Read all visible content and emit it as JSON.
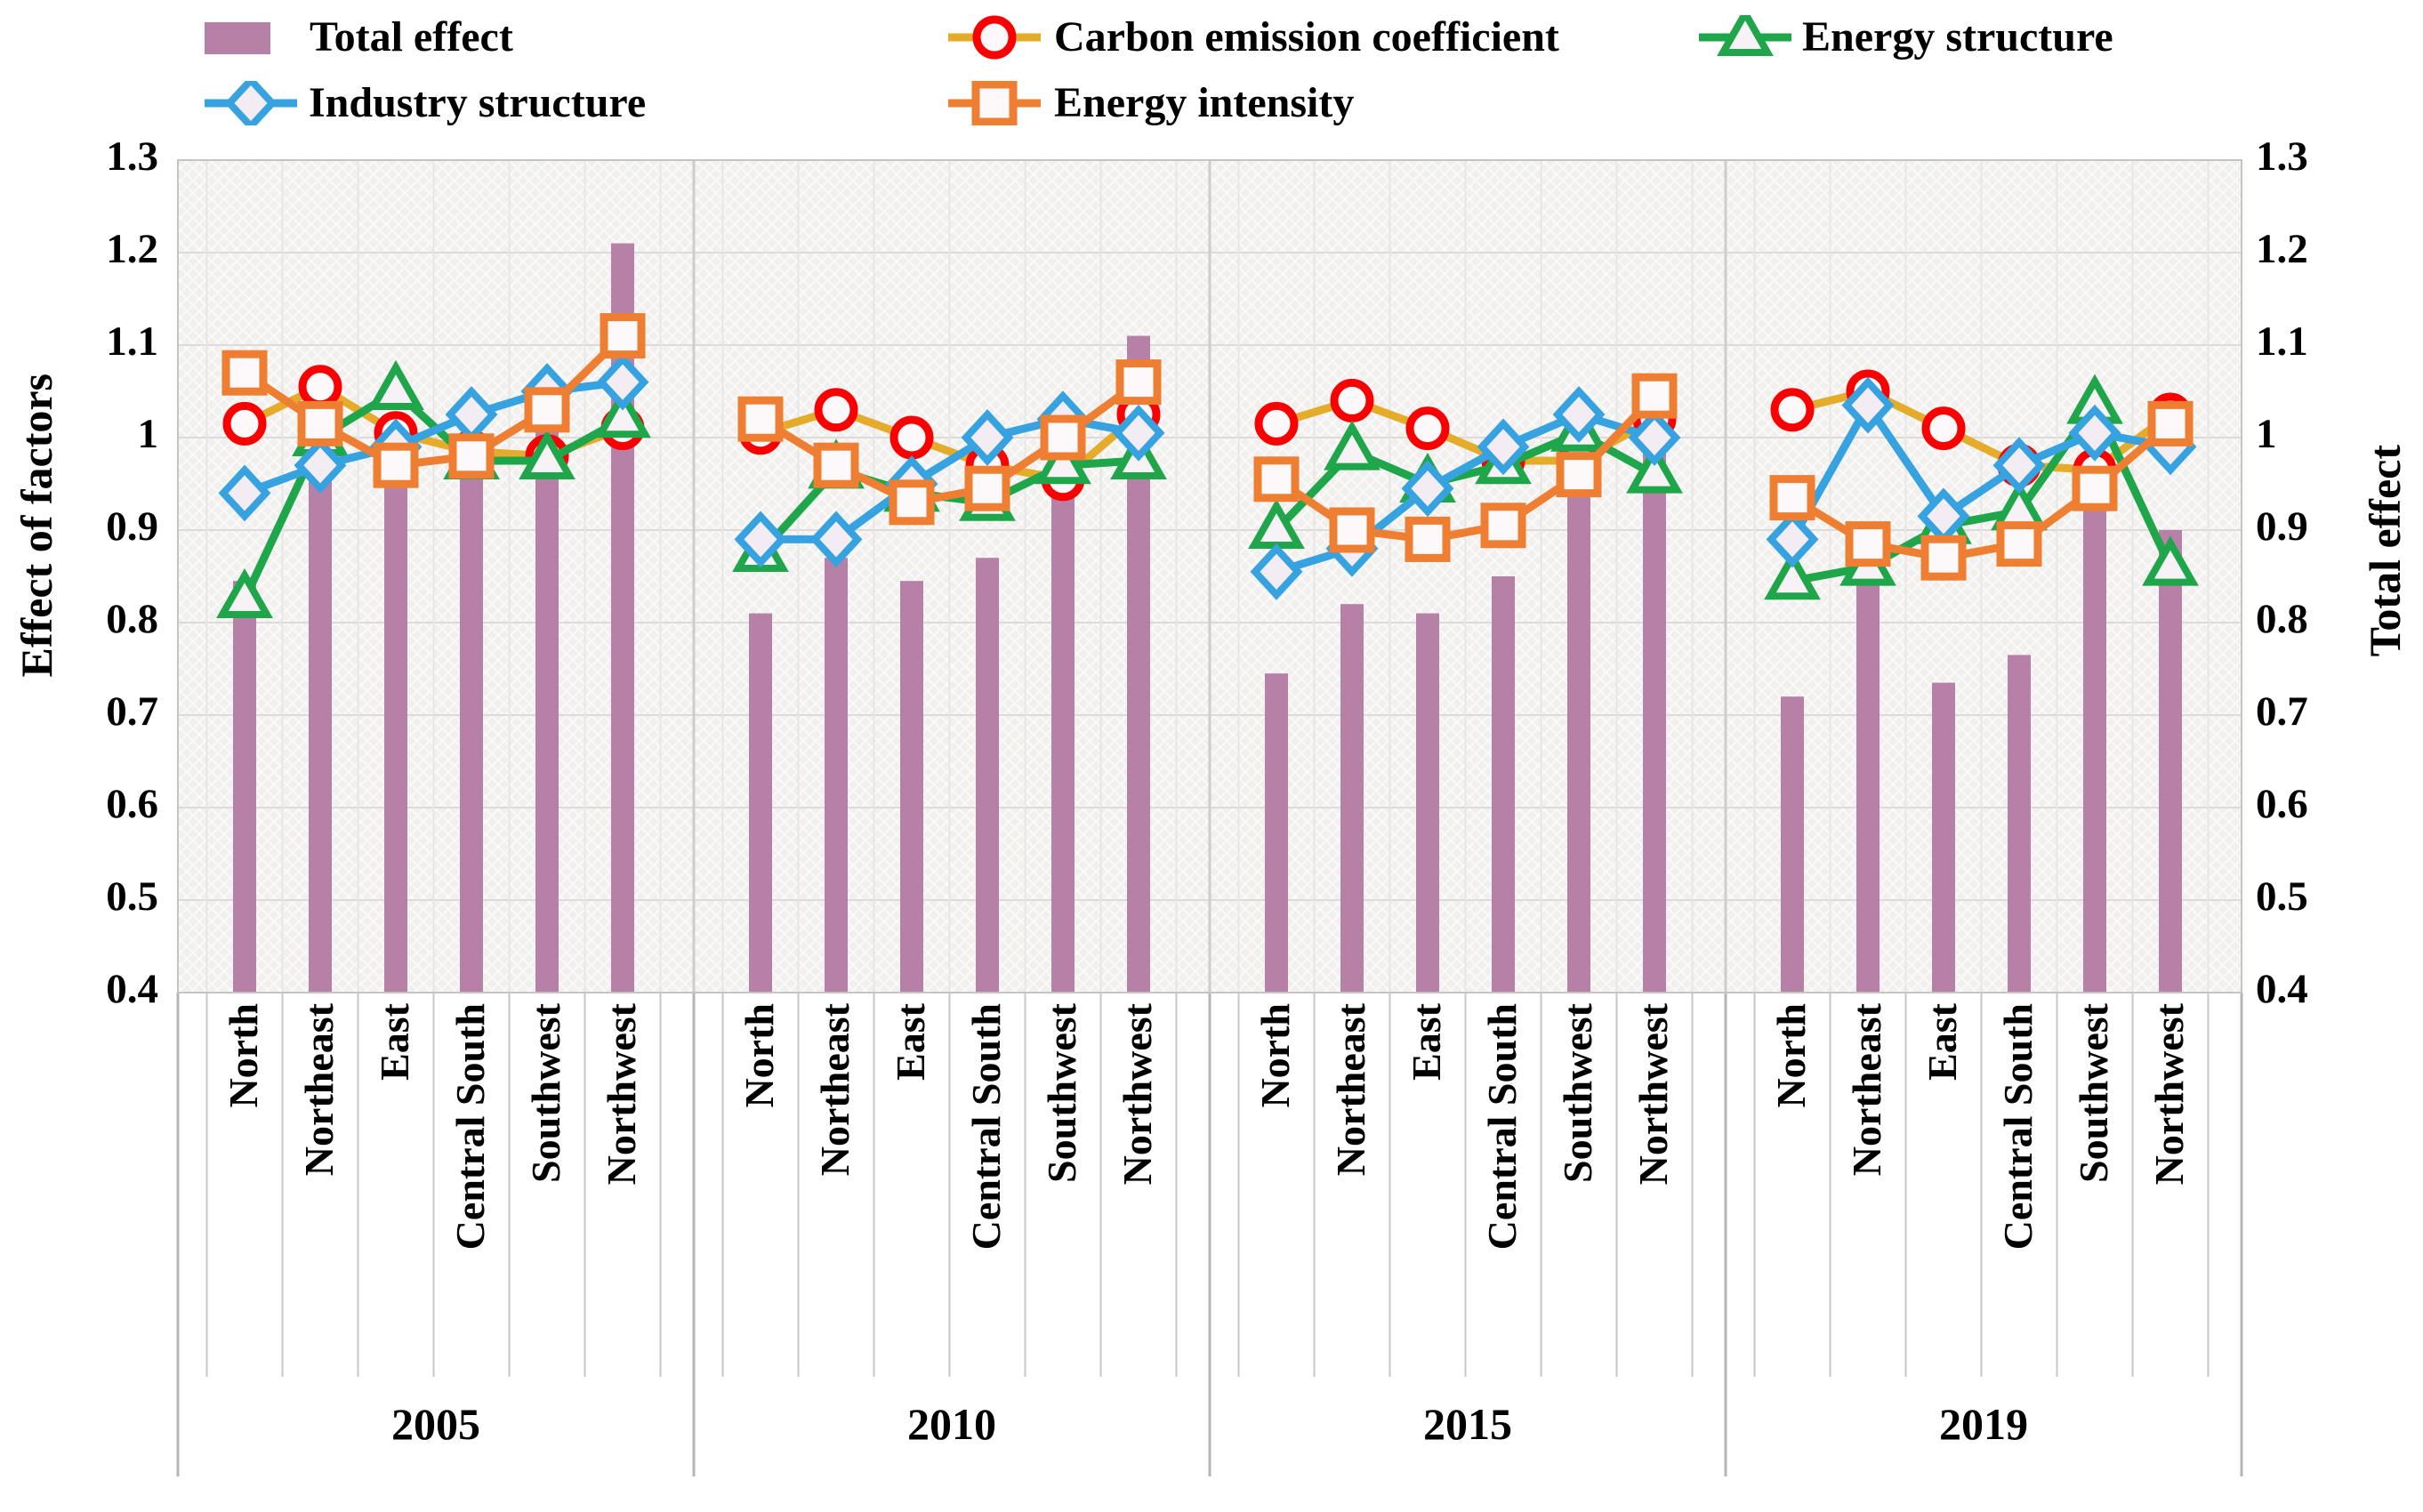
{
  "chart_data": {
    "type": "bar+line",
    "title": "",
    "regions": [
      "North",
      "Northeast",
      "East",
      "Central South",
      "Southwest",
      "Northwest"
    ],
    "years": [
      "2005",
      "2010",
      "2015",
      "2019"
    ],
    "left_axis": {
      "label": "Effect of factors",
      "tick_labels": [
        "1.3",
        "1.2",
        "1.1",
        "1",
        "0.9",
        "0.8",
        "0.7",
        "0.6",
        "0.5",
        "0.4"
      ],
      "min": 0.4,
      "max": 1.3,
      "step": 0.1
    },
    "right_axis": {
      "label": "Total effect",
      "tick_labels": [
        "1.3",
        "1.2",
        "1.1",
        "1",
        "0.9",
        "0.8",
        "0.7",
        "0.6",
        "0.5",
        "0.4"
      ],
      "min": 0.4,
      "max": 1.3,
      "step": 0.1
    },
    "grid": true,
    "legend_position": "top",
    "plot_bg": "#f1f0ee",
    "colors": {
      "bar": "#b780a6",
      "carbon_line": "#e4ac2a",
      "carbon_marker": "#fa0000",
      "energy_structure": "#20a64a",
      "industry": "#36a2e0",
      "energy_intensity": "#ee7e32",
      "gridline": "#dcdbd9",
      "separator": "#c9c7c5"
    },
    "legend": [
      {
        "id": "total",
        "label": "Total effect",
        "kind": "bar",
        "marker": "bar-swatch"
      },
      {
        "id": "carbon",
        "label": "Carbon emission coefficient",
        "kind": "line",
        "marker": "circle"
      },
      {
        "id": "energy_structure",
        "label": "Energy structure",
        "kind": "line",
        "marker": "triangle"
      },
      {
        "id": "industry",
        "label": "Industry structure",
        "kind": "line",
        "marker": "diamond"
      },
      {
        "id": "energy_intensity",
        "label": "Energy intensity",
        "kind": "line",
        "marker": "square"
      }
    ],
    "series_by_year": {
      "2005": {
        "total": [
          0.845,
          1.04,
          0.96,
          0.955,
          1.02,
          1.21
        ],
        "carbon": [
          1.015,
          1.055,
          1.005,
          0.985,
          0.98,
          1.01
        ],
        "energy_structure": [
          0.825,
          1.0,
          1.05,
          0.975,
          0.975,
          1.02
        ],
        "industry": [
          0.94,
          0.97,
          0.99,
          1.025,
          1.05,
          1.06
        ],
        "energy_intensity": [
          1.07,
          1.015,
          0.97,
          0.98,
          1.03,
          1.11
        ]
      },
      "2010": {
        "total": [
          0.81,
          0.87,
          0.845,
          0.87,
          0.945,
          1.11
        ],
        "carbon": [
          1.005,
          1.03,
          1.0,
          0.97,
          0.955,
          1.025
        ],
        "energy_structure": [
          0.875,
          0.965,
          0.94,
          0.93,
          0.97,
          0.975
        ],
        "industry": [
          0.89,
          0.89,
          0.95,
          1.0,
          1.02,
          1.005
        ],
        "energy_intensity": [
          1.02,
          0.97,
          0.93,
          0.945,
          1.0,
          1.06
        ]
      },
      "2015": {
        "total": [
          0.745,
          0.82,
          0.81,
          0.85,
          0.945,
          0.985
        ],
        "carbon": [
          1.015,
          1.04,
          1.01,
          0.975,
          0.975,
          1.02
        ],
        "energy_structure": [
          0.9,
          0.985,
          0.95,
          0.97,
          1.005,
          0.96
        ],
        "industry": [
          0.855,
          0.88,
          0.945,
          0.99,
          1.025,
          1.0
        ],
        "energy_intensity": [
          0.955,
          0.9,
          0.89,
          0.905,
          0.96,
          1.045
        ]
      },
      "2019": {
        "total": [
          0.72,
          0.84,
          0.735,
          0.765,
          0.93,
          0.9
        ],
        "carbon": [
          1.03,
          1.05,
          1.01,
          0.97,
          0.965,
          1.025
        ],
        "energy_structure": [
          0.845,
          0.86,
          0.905,
          0.92,
          1.035,
          0.86
        ],
        "industry": [
          0.89,
          1.035,
          0.915,
          0.97,
          1.005,
          0.99
        ],
        "energy_intensity": [
          0.935,
          0.885,
          0.87,
          0.885,
          0.945,
          1.015
        ]
      }
    }
  }
}
